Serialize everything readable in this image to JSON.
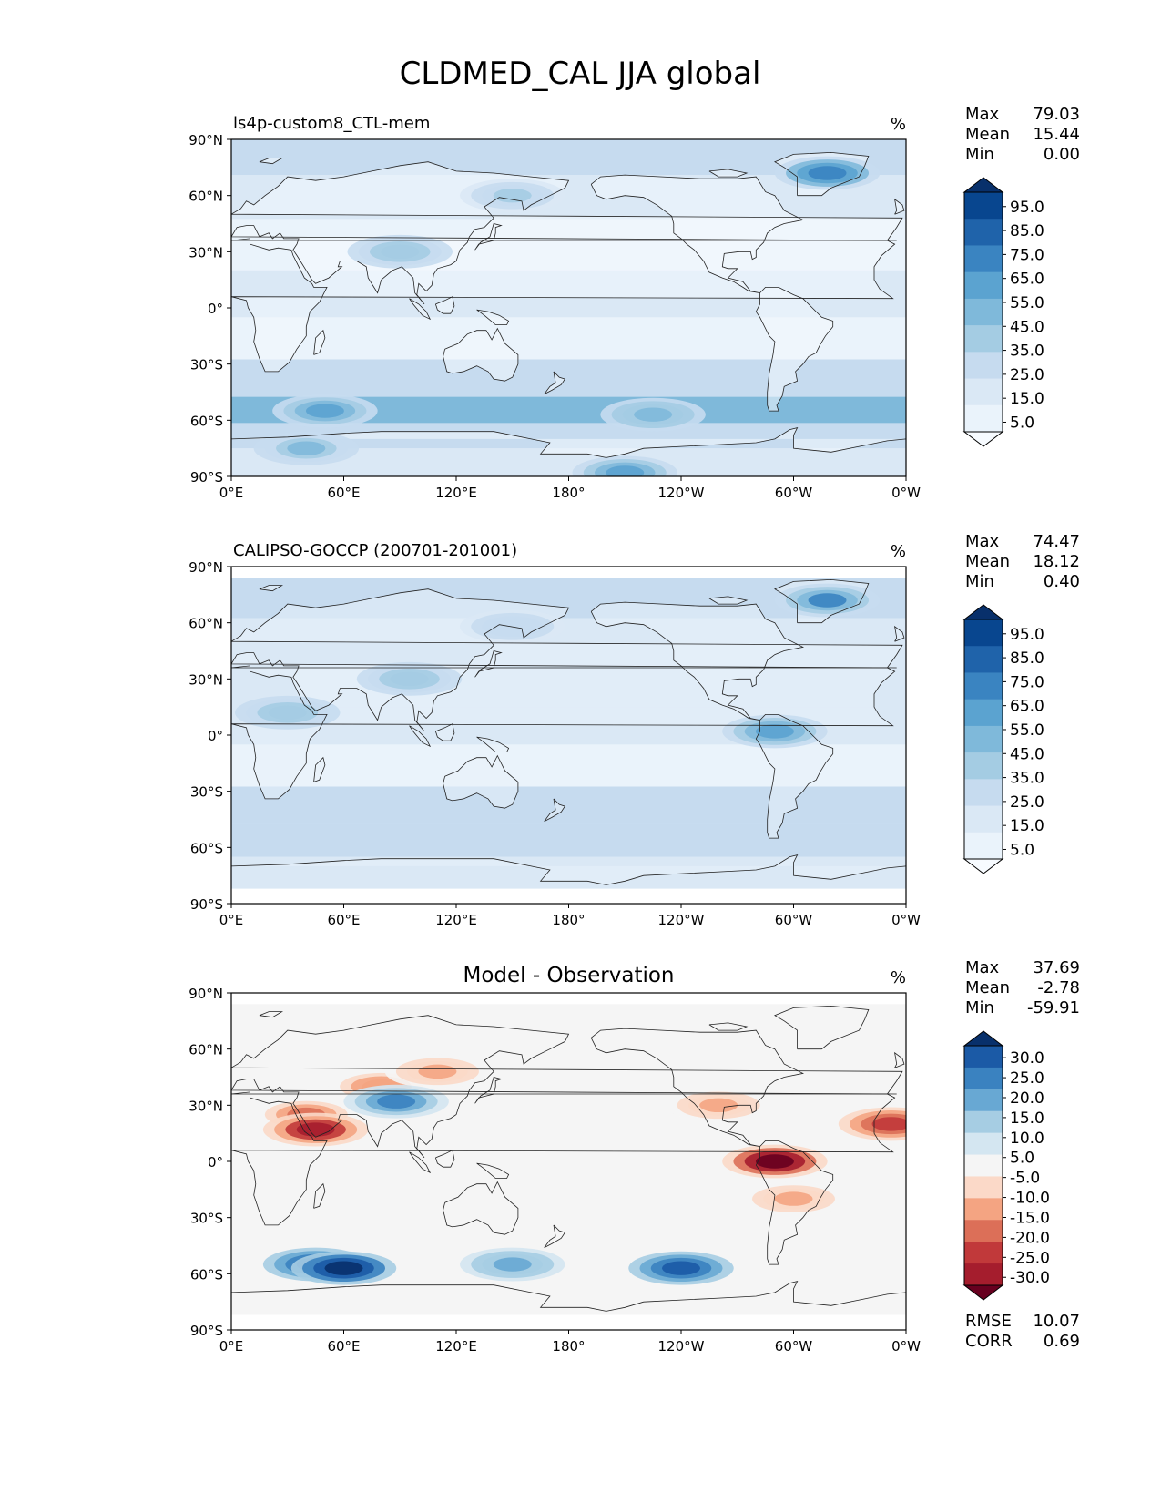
{
  "figure": {
    "title": "CLDMED_CAL JJA global"
  },
  "axes": {
    "lat_labels": [
      "90°N",
      "60°N",
      "30°N",
      "0°",
      "30°S",
      "60°S",
      "90°S"
    ],
    "lon_labels": [
      "0°E",
      "60°E",
      "120°E",
      "180°",
      "120°W",
      "60°W",
      "0°W"
    ]
  },
  "panels": [
    {
      "name": "ls4p-custom8_CTL-mem",
      "title_center": "",
      "title_left": "ls4p-custom8_CTL-mem",
      "units": "%",
      "stats": {
        "max_label": "Max",
        "max_value": "79.03",
        "mean_label": "Mean",
        "mean_value": "15.44",
        "min_label": "Min",
        "min_value": "0.00"
      },
      "colorbar": {
        "labels": [
          "95.0",
          "85.0",
          "75.0",
          "65.0",
          "55.0",
          "45.0",
          "35.0",
          "25.0",
          "15.0",
          "5.0"
        ],
        "colors": [
          "#08306b",
          "#08468f",
          "#1f63aa",
          "#3a84c1",
          "#5ba3d0",
          "#7fb9da",
          "#a4cce3",
          "#c6dbef",
          "#dae8f5",
          "#eaf3fb",
          "#f7fbff"
        ]
      },
      "field": {
        "ocean": "#dde9f6",
        "land": "#f3f8fd",
        "bands": [
          {
            "lat": 82,
            "value": 25
          },
          {
            "lat": 60,
            "value": 20
          },
          {
            "lat": 35,
            "value": 12
          },
          {
            "lat": 5,
            "value": 15
          },
          {
            "lat": -15,
            "value": 10
          },
          {
            "lat": -40,
            "value": 30
          },
          {
            "lat": -55,
            "value": 45
          },
          {
            "lat": -68,
            "value": 25
          },
          {
            "lat": -82,
            "value": 15
          }
        ],
        "blobs": [
          {
            "lon": 50,
            "lat": -55,
            "value": 55
          },
          {
            "lon": 225,
            "lat": -57,
            "value": 50
          },
          {
            "lon": 318,
            "lat": 72,
            "value": 70
          },
          {
            "lon": 150,
            "lat": 60,
            "value": 35
          },
          {
            "lon": 90,
            "lat": 30,
            "value": 40
          },
          {
            "lon": 40,
            "lat": -75,
            "value": 45
          },
          {
            "lon": 210,
            "lat": -88,
            "value": 60
          }
        ]
      }
    },
    {
      "name": "CALIPSO-GOCCP (200701-201001)",
      "title_center": "",
      "title_left": "CALIPSO-GOCCP (200701-201001)",
      "units": "%",
      "stats": {
        "max_label": "Max",
        "max_value": "74.47",
        "mean_label": "Mean",
        "mean_value": "18.12",
        "min_label": "Min",
        "min_value": "0.40"
      },
      "colorbar": {
        "labels": [
          "95.0",
          "85.0",
          "75.0",
          "65.0",
          "55.0",
          "45.0",
          "35.0",
          "25.0",
          "15.0",
          "5.0"
        ],
        "colors": [
          "#08306b",
          "#08468f",
          "#1f63aa",
          "#3a84c1",
          "#5ba3d0",
          "#7fb9da",
          "#a4cce3",
          "#c6dbef",
          "#dae8f5",
          "#eaf3fb",
          "#f7fbff"
        ]
      },
      "field": {
        "ocean": "#d6e5f4",
        "land": "#e8f1fa",
        "bands": [
          {
            "lat": 75,
            "value": 25
          },
          {
            "lat": 50,
            "value": 22
          },
          {
            "lat": 25,
            "value": 15
          },
          {
            "lat": 5,
            "value": 18
          },
          {
            "lat": -15,
            "value": 14
          },
          {
            "lat": -40,
            "value": 25
          },
          {
            "lat": -55,
            "value": 30
          },
          {
            "lat": -75,
            "value": 22
          }
        ],
        "blobs": [
          {
            "lon": 318,
            "lat": 72,
            "value": 65
          },
          {
            "lon": 290,
            "lat": 2,
            "value": 55
          },
          {
            "lon": 30,
            "lat": 12,
            "value": 40
          },
          {
            "lon": 95,
            "lat": 30,
            "value": 40
          },
          {
            "lon": 150,
            "lat": 58,
            "value": 32
          }
        ]
      }
    },
    {
      "name": "Model - Observation",
      "title_center": "Model - Observation",
      "title_left": "",
      "units": "%",
      "stats": {
        "max_label": "Max",
        "max_value": "37.69",
        "mean_label": "Mean",
        "mean_value": "-2.78",
        "min_label": "Min",
        "min_value": "-59.91"
      },
      "colorbar": {
        "labels": [
          "30.0",
          "25.0",
          "20.0",
          "15.0",
          "10.0",
          "5.0",
          "-5.0",
          "-10.0",
          "-15.0",
          "-20.0",
          "-25.0",
          "-30.0"
        ],
        "colors": [
          "#08306b",
          "#1b5aa6",
          "#3a82c0",
          "#68a8d3",
          "#a6cde3",
          "#d4e6f1",
          "#f5f5f5",
          "#fbd9c8",
          "#f4a482",
          "#dc6f58",
          "#c1393a",
          "#a51d2d",
          "#67001f"
        ]
      },
      "field": {
        "ocean": "#f5f5f5",
        "land": "#f5f5f5",
        "bands": [],
        "blobs": [
          {
            "lon": 80,
            "lat": 40,
            "value": -15
          },
          {
            "lon": 40,
            "lat": 25,
            "value": -20
          },
          {
            "lon": 45,
            "lat": 17,
            "value": -30
          },
          {
            "lon": 110,
            "lat": 48,
            "value": -12
          },
          {
            "lon": 260,
            "lat": 30,
            "value": -12
          },
          {
            "lon": 290,
            "lat": 0,
            "value": -35
          },
          {
            "lon": 300,
            "lat": -20,
            "value": -12
          },
          {
            "lon": 352,
            "lat": 20,
            "value": -25
          },
          {
            "lon": 45,
            "lat": -55,
            "value": 22
          },
          {
            "lon": 60,
            "lat": -57,
            "value": 30
          },
          {
            "lon": 240,
            "lat": -57,
            "value": 22
          },
          {
            "lon": 150,
            "lat": -55,
            "value": 12
          },
          {
            "lon": 88,
            "lat": 32,
            "value": 15
          }
        ]
      },
      "metrics": {
        "rmse_label": "RMSE",
        "rmse_value": "10.07",
        "corr_label": "CORR",
        "corr_value": "0.69"
      }
    }
  ]
}
